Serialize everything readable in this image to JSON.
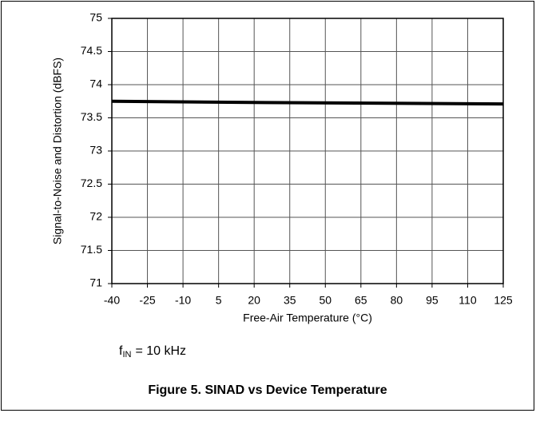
{
  "chart_data": {
    "type": "line",
    "caption": "Figure 5. SINAD vs Device Temperature",
    "x_label": "Free-Air Temperature (°C)",
    "y_label": "Signal-to-Noise and Distortion (dBFS)",
    "annotation": {
      "symbol": "f",
      "subscript": "IN",
      "text": "= 10 kHz"
    },
    "x": [
      -40,
      25,
      125
    ],
    "series": [
      {
        "color": "#000000",
        "values": [
          73.75,
          73.73,
          73.71
        ]
      }
    ],
    "xlim": [
      -40,
      125
    ],
    "xticks": [
      -40,
      -25,
      -10,
      5,
      20,
      35,
      50,
      65,
      80,
      95,
      110,
      125
    ],
    "ylim": [
      71,
      75
    ],
    "yticks": [
      71,
      71.5,
      72,
      72.5,
      73,
      73.5,
      74,
      74.5,
      75
    ],
    "grid": true
  }
}
